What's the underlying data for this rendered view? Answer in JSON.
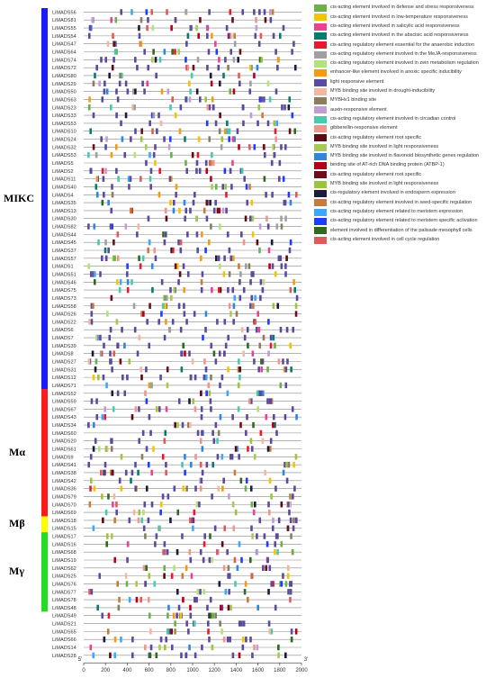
{
  "groups": [
    {
      "name": "MIKC",
      "color": "#1a1aff",
      "start": 0,
      "count": 48
    },
    {
      "name": "Mα",
      "color": "#ff1a1a",
      "start": 48,
      "count": 16
    },
    {
      "name": "Mβ",
      "color": "#ffff00",
      "start": 64,
      "count": 2
    },
    {
      "name": "Mγ",
      "color": "#22dd22",
      "start": 66,
      "count": 10
    }
  ],
  "genes": [
    "LiMADS56",
    "LiMADS81",
    "LiMADS55",
    "LiMADS54",
    "LiMADS47",
    "LiMADS64",
    "LiMADS74",
    "LiMADS72",
    "LiMADS80",
    "LiMADS29",
    "LiMADS50",
    "LiMADS63",
    "LiMADS23",
    "LiMADS33",
    "LiMADS53",
    "LiMADS10",
    "LiMADS24",
    "LiMADS32",
    "LiMADS53",
    "LiMADS5",
    "LiMADS2",
    "LiMADS11",
    "LiMADS40",
    "LiMADS4",
    "LiMADS35",
    "LiMADS13",
    "LiMADS30",
    "LiMADS82",
    "LiMADS44",
    "LiMADS45",
    "LiMADS37",
    "LiMADS57",
    "LiMADS1",
    "LiMADS51",
    "LiMADS46",
    "LiMADS75",
    "LiMADS73",
    "LiMADS58",
    "LiMADS26",
    "LiMADS22",
    "LiMADS6",
    "LiMADS7",
    "LiMADS39",
    "LiMADS8",
    "LiMADS27",
    "LiMADS31",
    "LiMADS12",
    "LiMADS71",
    "LiMADS52",
    "LiMADS59",
    "LiMADS67",
    "LiMADS43",
    "LiMADS34",
    "LiMADS60",
    "LiMADS20",
    "LiMADS61",
    "LiMADS9",
    "LiMADS41",
    "LiMADS38",
    "LiMADS42",
    "LiMADS36",
    "LiMADS79",
    "LiMADS70",
    "LiMADS69",
    "LiMADS18",
    "LiMADS15",
    "LiMADS17",
    "LiMADS16",
    "LiMADS68",
    "LiMADS19",
    "LiMADS62",
    "LiMADS25",
    "LiMADS76",
    "LiMADS77",
    "LiMADS78",
    "LiMADS48",
    "LiMADS49",
    "LiMADS21",
    "LiMADS65",
    "LiMADS66",
    "LiMADS14",
    "LiMADS28"
  ],
  "axis": {
    "ticks": [
      0,
      200,
      400,
      600,
      800,
      1000,
      1200,
      1400,
      1600,
      1800,
      2000
    ],
    "tick_labels": [
      "0",
      "200",
      "400",
      "600",
      "800",
      "1000",
      "1200",
      "1400",
      "1600",
      "1800",
      "2000"
    ],
    "left_end": "5'",
    "right_end": "3'",
    "min": 0,
    "max": 2000
  },
  "legend": [
    {
      "label": "cis-acting element involved in defense and stress responsiveness",
      "color": "#6ab04c"
    },
    {
      "label": "cis-acting element involved in low-temperature responsiveness",
      "color": "#f5c400"
    },
    {
      "label": "cis-acting element involved in salicylic acid responsiveness",
      "color": "#e84393"
    },
    {
      "label": "cis-acting element involved in the abscisic acid responsiveness",
      "color": "#0a7a6a"
    },
    {
      "label": "cis-acting regulatory element essential for the anaerobic induction",
      "color": "#e8192c"
    },
    {
      "label": "cis-acting regulatory element involved in the MeJA-responsiveness",
      "color": "#a0a0a0"
    },
    {
      "label": "cis-acting regulatory element involved in zein metabolism regulation",
      "color": "#b5e07a"
    },
    {
      "label": "enhancer-like element involved in anoxic specific inducibility",
      "color": "#f39c12"
    },
    {
      "label": "light responsive element",
      "color": "#5b4a9e"
    },
    {
      "label": "MYB binding site involved in drought-inducibility",
      "color": "#f5b7a0"
    },
    {
      "label": "MYBHv1 binding site",
      "color": "#8b7d5e"
    },
    {
      "label": "auxin-responsive element",
      "color": "#c39bd3"
    },
    {
      "label": "cis-acting regulatory element involved in circadian control",
      "color": "#48c9b0"
    },
    {
      "label": "gibberellin-responsive element",
      "color": "#f1948a"
    },
    {
      "label": "cis-acting regulatory element root specific",
      "color": "#5a0a10"
    },
    {
      "label": "MYB binding site involved in light responsiveness",
      "color": "#a7c957"
    },
    {
      "label": "MYB binding site involved in flavonoid biosynthetic genes regulation",
      "color": "#2e86de"
    },
    {
      "label": "binding site of AT-rich DNA binding protein (ATBP-1)",
      "color": "#b3001b"
    },
    {
      "label": "cis-acting regulatory element root specific",
      "color": "#6b0f1a"
    },
    {
      "label": "MYB binding site involved in light responsiveness",
      "color": "#9bc53d"
    },
    {
      "label": "cis-regulatory element involved in endosperm expression",
      "color": "#1b1b3a"
    },
    {
      "label": "cis-acting regulatory element involved in seed-specific regulation",
      "color": "#c67c3b"
    },
    {
      "label": "cis-acting regulatory element related to meristem expression",
      "color": "#3ea6ff"
    },
    {
      "label": "cis-acting regulatory element related to meristem specific activation",
      "color": "#1e3cff"
    },
    {
      "label": "element involved in differentiation of the palisade mesophyll cells",
      "color": "#2d6a1f"
    },
    {
      "label": "cis-acting element involved in cell cycle regulation",
      "color": "#e05a5a"
    }
  ]
}
